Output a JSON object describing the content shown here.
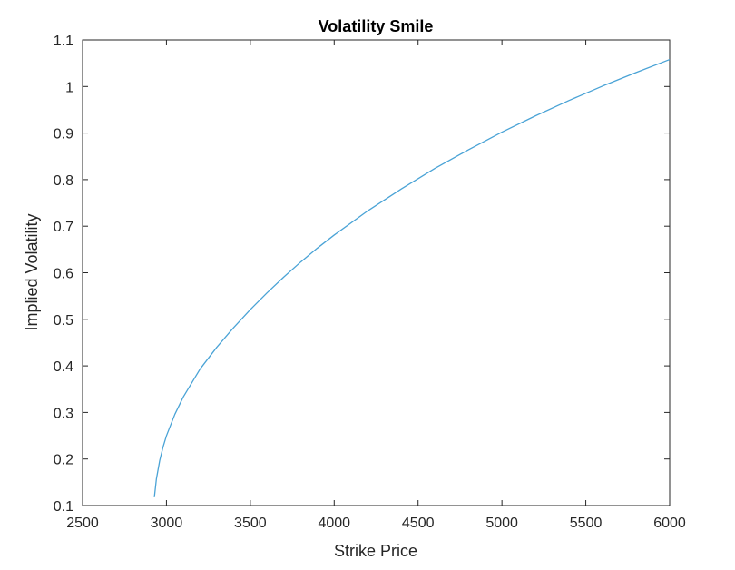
{
  "chart_data": {
    "type": "line",
    "title": "Volatility Smile",
    "xlabel": "Strike Price",
    "ylabel": "Implied Volatility",
    "xlim": [
      2500,
      6000
    ],
    "ylim": [
      0.1,
      1.1
    ],
    "xticks": [
      2500,
      3000,
      3500,
      4000,
      4500,
      5000,
      5500,
      6000
    ],
    "yticks": [
      0.1,
      0.2,
      0.3,
      0.4,
      0.5,
      0.6,
      0.7,
      0.8,
      0.9,
      1,
      1.1
    ],
    "xtick_labels": [
      "2500",
      "3000",
      "3500",
      "4000",
      "4500",
      "5000",
      "5500",
      "6000"
    ],
    "ytick_labels": [
      "0.1",
      "0.2",
      "0.3",
      "0.4",
      "0.5",
      "0.6",
      "0.7",
      "0.8",
      "0.9",
      "1",
      "1.1"
    ],
    "grid": false,
    "line_color": "#4aa3d6",
    "series": [
      {
        "x": [
          2928,
          2940,
          2960,
          2980,
          3000,
          3050,
          3100,
          3200,
          3300,
          3400,
          3500,
          3600,
          3700,
          3800,
          3900,
          4000,
          4200,
          4400,
          4600,
          4800,
          5000,
          5200,
          5400,
          5600,
          5800,
          6000
        ],
        "values": [
          0.118,
          0.157,
          0.197,
          0.226,
          0.25,
          0.296,
          0.333,
          0.393,
          0.44,
          0.482,
          0.521,
          0.557,
          0.591,
          0.623,
          0.653,
          0.681,
          0.733,
          0.78,
          0.824,
          0.864,
          0.902,
          0.937,
          0.97,
          1.001,
          1.03,
          1.058
        ]
      }
    ]
  }
}
